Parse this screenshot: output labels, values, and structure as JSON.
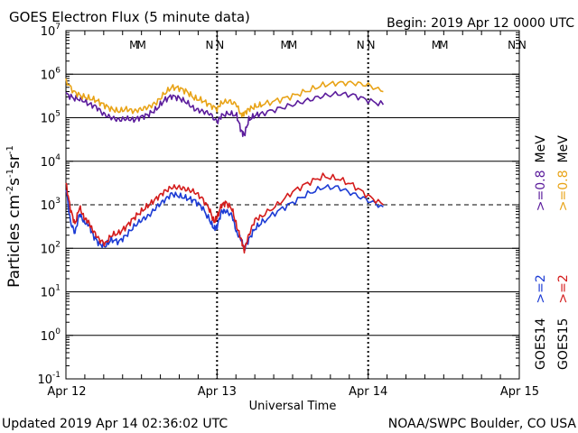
{
  "chart_data": {
    "type": "line",
    "title": "GOES Electron Flux (5 minute data)",
    "begin_label": "Begin: 2019 Apr 12 0000 UTC",
    "xlabel": "Universal Time",
    "ylabel_parts": [
      "Particles cm",
      "-2",
      "s",
      "-1",
      "sr",
      "-1"
    ],
    "x_unit": "days since 2019 Apr 12 00:00 UTC",
    "xlim": [
      0,
      3
    ],
    "ylim_log10": [
      -1,
      7
    ],
    "x_ticks": [
      {
        "value": 0,
        "label": "Apr 12"
      },
      {
        "value": 1,
        "label": "Apr 13"
      },
      {
        "value": 2,
        "label": "Apr 14"
      },
      {
        "value": 3,
        "label": "Apr 15"
      }
    ],
    "y_ticks": [
      {
        "exp": 7,
        "base": "10",
        "sup": "7"
      },
      {
        "exp": 6,
        "base": "10",
        "sup": "6"
      },
      {
        "exp": 5,
        "base": "10",
        "sup": "5"
      },
      {
        "exp": 4,
        "base": "10",
        "sup": "4"
      },
      {
        "exp": 3,
        "base": "10",
        "sup": "3"
      },
      {
        "exp": 2,
        "base": "10",
        "sup": "2"
      },
      {
        "exp": 1,
        "base": "10",
        "sup": "1"
      },
      {
        "exp": 0,
        "base": "10",
        "sup": "0"
      },
      {
        "exp": -1,
        "base": "10",
        "sup": "-1"
      }
    ],
    "decade_gridlines": [
      6,
      5,
      4,
      2,
      1,
      0
    ],
    "threshold_line": {
      "exp": 3,
      "style": "dashed"
    },
    "local_markers": [
      {
        "x": 0.45,
        "letter": "M",
        "sat": "GOES14",
        "color": "#1c3bd4"
      },
      {
        "x": 0.5,
        "letter": "M",
        "sat": "GOES15",
        "color": "#d41c1c"
      },
      {
        "x": 0.95,
        "letter": "N",
        "sat": "GOES14",
        "color": "#1c3bd4"
      },
      {
        "x": 1.02,
        "letter": "N",
        "sat": "GOES15",
        "color": "#d41c1c"
      },
      {
        "x": 1.45,
        "letter": "M",
        "sat": "GOES14",
        "color": "#1c3bd4"
      },
      {
        "x": 1.5,
        "letter": "M",
        "sat": "GOES15",
        "color": "#d41c1c"
      },
      {
        "x": 1.95,
        "letter": "N",
        "sat": "GOES14",
        "color": "#1c3bd4"
      },
      {
        "x": 2.02,
        "letter": "N",
        "sat": "GOES15",
        "color": "#d41c1c"
      },
      {
        "x": 2.45,
        "letter": "M",
        "sat": "GOES14",
        "color": "#1c3bd4"
      },
      {
        "x": 2.5,
        "letter": "M",
        "sat": "GOES15",
        "color": "#d41c1c"
      },
      {
        "x": 2.95,
        "letter": "N",
        "sat": "GOES14",
        "color": "#1c3bd4"
      },
      {
        "x": 3.02,
        "letter": "N",
        "sat": "GOES15",
        "color": "#d41c1c"
      }
    ],
    "series": [
      {
        "name": "GOES14 >=0.8 MeV",
        "color": "#5b1c9c",
        "points": [
          [
            0,
            5.55
          ],
          [
            0.05,
            5.45
          ],
          [
            0.1,
            5.42
          ],
          [
            0.15,
            5.32
          ],
          [
            0.2,
            5.25
          ],
          [
            0.25,
            5.08
          ],
          [
            0.3,
            5.0
          ],
          [
            0.35,
            4.95
          ],
          [
            0.4,
            4.98
          ],
          [
            0.45,
            4.95
          ],
          [
            0.5,
            5.02
          ],
          [
            0.55,
            5.08
          ],
          [
            0.6,
            5.2
          ],
          [
            0.65,
            5.4
          ],
          [
            0.7,
            5.5
          ],
          [
            0.75,
            5.45
          ],
          [
            0.8,
            5.35
          ],
          [
            0.85,
            5.2
          ],
          [
            0.9,
            5.15
          ],
          [
            0.95,
            5.1
          ],
          [
            1.0,
            4.9
          ],
          [
            1.03,
            5.05
          ],
          [
            1.08,
            5.1
          ],
          [
            1.13,
            5.05
          ],
          [
            1.16,
            4.7
          ],
          [
            1.18,
            4.6
          ],
          [
            1.21,
            4.95
          ],
          [
            1.25,
            5.05
          ],
          [
            1.3,
            5.1
          ],
          [
            1.4,
            5.2
          ],
          [
            1.5,
            5.3
          ],
          [
            1.6,
            5.4
          ],
          [
            1.7,
            5.5
          ],
          [
            1.8,
            5.55
          ],
          [
            1.9,
            5.52
          ],
          [
            2.0,
            5.4
          ],
          [
            2.1,
            5.3
          ]
        ]
      },
      {
        "name": "GOES15 >=0.8 MeV",
        "color": "#e8a317",
        "points": [
          [
            0,
            5.85
          ],
          [
            0.05,
            5.6
          ],
          [
            0.1,
            5.5
          ],
          [
            0.15,
            5.45
          ],
          [
            0.2,
            5.4
          ],
          [
            0.25,
            5.3
          ],
          [
            0.3,
            5.2
          ],
          [
            0.35,
            5.15
          ],
          [
            0.4,
            5.2
          ],
          [
            0.45,
            5.15
          ],
          [
            0.5,
            5.2
          ],
          [
            0.55,
            5.25
          ],
          [
            0.6,
            5.35
          ],
          [
            0.65,
            5.55
          ],
          [
            0.7,
            5.7
          ],
          [
            0.75,
            5.68
          ],
          [
            0.8,
            5.6
          ],
          [
            0.85,
            5.45
          ],
          [
            0.9,
            5.4
          ],
          [
            0.95,
            5.3
          ],
          [
            1.0,
            5.2
          ],
          [
            1.03,
            5.35
          ],
          [
            1.08,
            5.38
          ],
          [
            1.13,
            5.3
          ],
          [
            1.16,
            5.05
          ],
          [
            1.18,
            5.1
          ],
          [
            1.21,
            5.2
          ],
          [
            1.25,
            5.25
          ],
          [
            1.3,
            5.3
          ],
          [
            1.4,
            5.4
          ],
          [
            1.5,
            5.5
          ],
          [
            1.6,
            5.62
          ],
          [
            1.7,
            5.75
          ],
          [
            1.8,
            5.8
          ],
          [
            1.9,
            5.8
          ],
          [
            2.0,
            5.75
          ],
          [
            2.1,
            5.6
          ]
        ]
      },
      {
        "name": "GOES14 >=2 MeV",
        "color": "#1c3bd4",
        "points": [
          [
            0,
            3.4
          ],
          [
            0.03,
            2.6
          ],
          [
            0.06,
            2.35
          ],
          [
            0.09,
            2.8
          ],
          [
            0.12,
            2.6
          ],
          [
            0.15,
            2.55
          ],
          [
            0.18,
            2.3
          ],
          [
            0.22,
            2.1
          ],
          [
            0.26,
            2.05
          ],
          [
            0.3,
            2.2
          ],
          [
            0.35,
            2.15
          ],
          [
            0.4,
            2.3
          ],
          [
            0.45,
            2.5
          ],
          [
            0.5,
            2.65
          ],
          [
            0.55,
            2.75
          ],
          [
            0.6,
            2.95
          ],
          [
            0.65,
            3.1
          ],
          [
            0.7,
            3.25
          ],
          [
            0.75,
            3.2
          ],
          [
            0.8,
            3.15
          ],
          [
            0.85,
            3.1
          ],
          [
            0.9,
            2.95
          ],
          [
            0.95,
            2.65
          ],
          [
            0.98,
            2.45
          ],
          [
            1.0,
            2.5
          ],
          [
            1.03,
            2.85
          ],
          [
            1.06,
            2.85
          ],
          [
            1.1,
            2.75
          ],
          [
            1.13,
            2.35
          ],
          [
            1.16,
            2.2
          ],
          [
            1.18,
            2.0
          ],
          [
            1.21,
            2.2
          ],
          [
            1.25,
            2.45
          ],
          [
            1.3,
            2.6
          ],
          [
            1.4,
            2.85
          ],
          [
            1.5,
            3.05
          ],
          [
            1.6,
            3.25
          ],
          [
            1.7,
            3.4
          ],
          [
            1.8,
            3.4
          ],
          [
            1.9,
            3.25
          ],
          [
            2.0,
            3.1
          ],
          [
            2.1,
            2.95
          ]
        ]
      },
      {
        "name": "GOES15 >=2 MeV",
        "color": "#d41c1c",
        "points": [
          [
            0,
            3.5
          ],
          [
            0.03,
            2.9
          ],
          [
            0.06,
            2.55
          ],
          [
            0.09,
            2.95
          ],
          [
            0.12,
            2.7
          ],
          [
            0.15,
            2.6
          ],
          [
            0.18,
            2.4
          ],
          [
            0.22,
            2.2
          ],
          [
            0.26,
            2.1
          ],
          [
            0.3,
            2.3
          ],
          [
            0.35,
            2.35
          ],
          [
            0.4,
            2.5
          ],
          [
            0.45,
            2.7
          ],
          [
            0.5,
            2.85
          ],
          [
            0.55,
            3.0
          ],
          [
            0.6,
            3.15
          ],
          [
            0.65,
            3.3
          ],
          [
            0.7,
            3.4
          ],
          [
            0.75,
            3.4
          ],
          [
            0.8,
            3.35
          ],
          [
            0.85,
            3.3
          ],
          [
            0.9,
            3.15
          ],
          [
            0.95,
            2.9
          ],
          [
            0.98,
            2.6
          ],
          [
            1.0,
            2.7
          ],
          [
            1.03,
            3.0
          ],
          [
            1.06,
            3.05
          ],
          [
            1.1,
            2.9
          ],
          [
            1.13,
            2.5
          ],
          [
            1.16,
            2.2
          ],
          [
            1.18,
            1.95
          ],
          [
            1.21,
            2.3
          ],
          [
            1.25,
            2.65
          ],
          [
            1.3,
            2.75
          ],
          [
            1.4,
            3.0
          ],
          [
            1.5,
            3.3
          ],
          [
            1.6,
            3.5
          ],
          [
            1.7,
            3.65
          ],
          [
            1.8,
            3.6
          ],
          [
            1.9,
            3.45
          ],
          [
            2.0,
            3.2
          ],
          [
            2.1,
            3.0
          ]
        ]
      }
    ],
    "legend_columns": [
      {
        "sat": "GOES14",
        "energy_lo": ">=2",
        "energy_hi": ">=0.8",
        "unit": "MeV",
        "lo_color": "#1c3bd4",
        "hi_color": "#5b1c9c"
      },
      {
        "sat": "GOES15",
        "energy_lo": ">=2",
        "energy_hi": ">=0.8",
        "unit": "MeV",
        "lo_color": "#d41c1c",
        "hi_color": "#e8a317"
      }
    ]
  },
  "footer": {
    "updated": "Updated 2019 Apr 14 02:36:02 UTC",
    "credit": "NOAA/SWPC Boulder, CO USA"
  }
}
